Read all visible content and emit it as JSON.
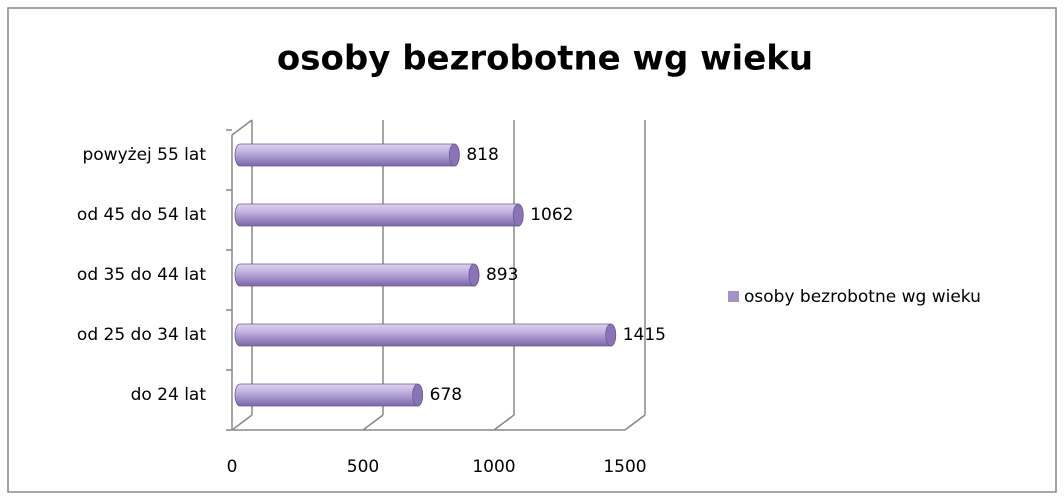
{
  "chart_data": {
    "type": "bar",
    "orientation": "horizontal",
    "title": "osoby bezrobotne wg wieku",
    "categories": [
      "do 24 lat",
      "od 25 do 34 lat",
      "od 35 do 44 lat",
      "od 45 do 54 lat",
      "powyżej 55 lat"
    ],
    "series": [
      {
        "name": "osoby bezrobotne wg wieku",
        "color": "#a593c8",
        "values": [
          678,
          1415,
          893,
          1062,
          818
        ]
      }
    ],
    "xlim": [
      0,
      1500
    ],
    "xticks": [
      0,
      500,
      1000,
      1500
    ],
    "grid": true,
    "legend": "right"
  }
}
